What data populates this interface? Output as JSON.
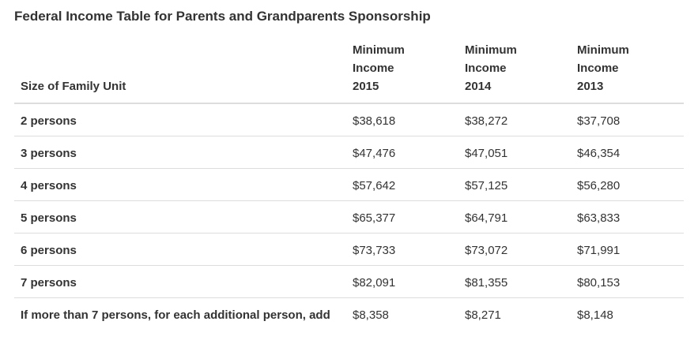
{
  "title": "Federal Income Table for Parents and Grandparents Sponsorship",
  "table": {
    "columns": [
      {
        "lines": [
          "Size of Family Unit"
        ]
      },
      {
        "lines": [
          "Minimum",
          "Income",
          "2015"
        ]
      },
      {
        "lines": [
          "Minimum",
          "Income",
          "2014"
        ]
      },
      {
        "lines": [
          "Minimum",
          "Income",
          "2013"
        ]
      }
    ],
    "rows": [
      {
        "label": "2 persons",
        "values": [
          "$38,618",
          "$38,272",
          "$37,708"
        ]
      },
      {
        "label": "3 persons",
        "values": [
          "$47,476",
          "$47,051",
          "$46,354"
        ]
      },
      {
        "label": "4 persons",
        "values": [
          "$57,642",
          "$57,125",
          "$56,280"
        ]
      },
      {
        "label": "5 persons",
        "values": [
          "$65,377",
          "$64,791",
          "$63,833"
        ]
      },
      {
        "label": "6 persons",
        "values": [
          "$73,733",
          "$73,072",
          "$71,991"
        ]
      },
      {
        "label": "7 persons",
        "values": [
          "$82,091",
          "$81,355",
          "$80,153"
        ]
      },
      {
        "label": "If more than 7 persons, for each additional person, add",
        "values": [
          "$8,358",
          "$8,271",
          "$8,148"
        ]
      }
    ]
  }
}
